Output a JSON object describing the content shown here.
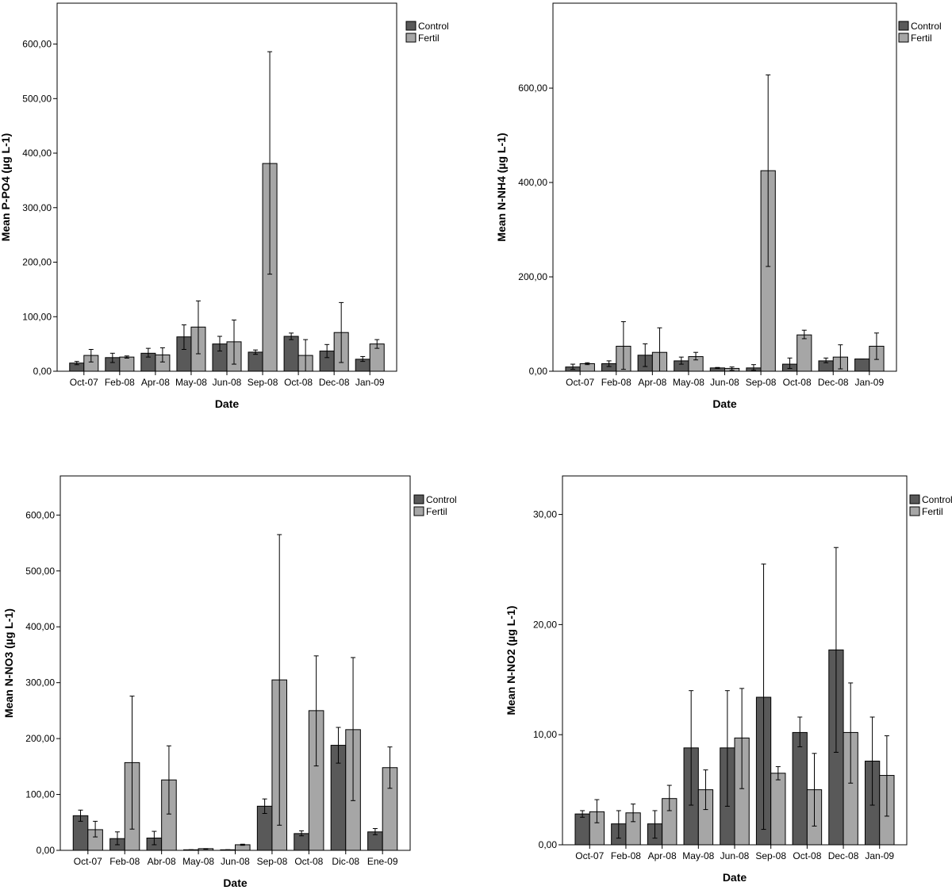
{
  "colors": {
    "control": "#595959",
    "fertil": "#a6a6a6",
    "axis": "#000000"
  },
  "chart_data": [
    {
      "type": "bar",
      "title": "",
      "xlabel": "Date",
      "ylabel": "Mean P-PO4 (µg L-1)",
      "ylim": [
        0,
        675
      ],
      "yticks": [
        0,
        100,
        200,
        300,
        400,
        500,
        600
      ],
      "ytick_labels": [
        "0,00",
        "100,00",
        "200,00",
        "300,00",
        "400,00",
        "500,00",
        "600,00"
      ],
      "categories": [
        "Oct-07",
        "Feb-08",
        "Apr-08",
        "May-08",
        "Jun-08",
        "Sep-08",
        "Oct-08",
        "Dec-08",
        "Jan-09"
      ],
      "legend": [
        "Control",
        "Fertil"
      ],
      "series": [
        {
          "name": "Control",
          "values": [
            15,
            25,
            33,
            63,
            50,
            35,
            64,
            37,
            22
          ],
          "err_low": [
            12,
            16,
            26,
            40,
            37,
            31,
            58,
            25,
            18
          ],
          "err_high": [
            18,
            33,
            42,
            85,
            64,
            39,
            70,
            49,
            27
          ]
        },
        {
          "name": "Fertil",
          "values": [
            29,
            26,
            30,
            81,
            54,
            381,
            29,
            71,
            50
          ],
          "err_low": [
            17,
            24,
            17,
            32,
            13,
            178,
            0,
            16,
            42
          ],
          "err_high": [
            40,
            28,
            43,
            129,
            94,
            586,
            58,
            126,
            58
          ]
        }
      ]
    },
    {
      "type": "bar",
      "title": "",
      "xlabel": "Date",
      "ylabel": "Mean N-NH4 (µg L-1)",
      "ylim": [
        0,
        780
      ],
      "yticks": [
        0,
        200,
        400,
        600
      ],
      "ytick_labels": [
        "0,00",
        "200,00",
        "400,00",
        "600,00"
      ],
      "categories": [
        "Oct-07",
        "Feb-08",
        "Apr-08",
        "May-08",
        "Jun-08",
        "Sep-08",
        "Oct-08",
        "Dec-08",
        "Jan-09"
      ],
      "legend": [
        "Control",
        "Fertil"
      ],
      "series": [
        {
          "name": "Control",
          "values": [
            9,
            16,
            34,
            22,
            7,
            7,
            15,
            22,
            26
          ],
          "err_low": [
            4,
            10,
            10,
            15,
            6,
            2,
            6,
            18,
            26
          ],
          "err_high": [
            15,
            22,
            58,
            30,
            8,
            14,
            28,
            28,
            26
          ]
        },
        {
          "name": "Fertil",
          "values": [
            16,
            53,
            40,
            31,
            6,
            425,
            77,
            30,
            53
          ],
          "err_low": [
            14,
            4,
            0,
            24,
            2,
            222,
            69,
            5,
            25
          ],
          "err_high": [
            18,
            105,
            92,
            40,
            9,
            628,
            87,
            56,
            81
          ]
        }
      ]
    },
    {
      "type": "bar",
      "title": "",
      "xlabel": "Date",
      "ylabel": "Mean N-NO3 (µg L-1)",
      "ylim": [
        0,
        670
      ],
      "yticks": [
        0,
        100,
        200,
        300,
        400,
        500,
        600
      ],
      "ytick_labels": [
        "0,00",
        "100,00",
        "200,00",
        "300,00",
        "400,00",
        "500,00",
        "600,00"
      ],
      "categories": [
        "Oct-07",
        "Feb-08",
        "Abr-08",
        "May-08",
        "Jun-08",
        "Sep-08",
        "Oct-08",
        "Dic-08",
        "Ene-09"
      ],
      "legend": [
        "Control",
        "Fertil"
      ],
      "series": [
        {
          "name": "Control",
          "values": [
            62,
            21,
            22,
            1,
            1,
            79,
            30,
            188,
            33
          ],
          "err_low": [
            52,
            10,
            10,
            1,
            1,
            66,
            26,
            156,
            28
          ],
          "err_high": [
            72,
            33,
            34,
            1,
            1,
            92,
            35,
            220,
            39
          ]
        },
        {
          "name": "Fertil",
          "values": [
            37,
            157,
            126,
            3,
            10,
            305,
            250,
            216,
            148
          ],
          "err_low": [
            24,
            38,
            65,
            2,
            9,
            45,
            151,
            89,
            111
          ],
          "err_high": [
            52,
            276,
            187,
            3,
            11,
            565,
            348,
            345,
            185
          ]
        }
      ]
    },
    {
      "type": "bar",
      "title": "",
      "xlabel": "Date",
      "ylabel": "Mean N-NO2 (µg L-1)",
      "ylim": [
        0,
        33.5
      ],
      "yticks": [
        0,
        10,
        20,
        30
      ],
      "ytick_labels": [
        "0,00",
        "10,00",
        "20,00",
        "30,00"
      ],
      "categories": [
        "Oct-07",
        "Feb-08",
        "Apr-08",
        "May-08",
        "Jun-08",
        "Sep-08",
        "Oct-08",
        "Dec-08",
        "Jan-09"
      ],
      "legend": [
        "Control",
        "Fertil"
      ],
      "series": [
        {
          "name": "Control",
          "values": [
            2.8,
            1.9,
            1.9,
            8.8,
            8.8,
            13.4,
            10.2,
            17.7,
            7.6
          ],
          "err_low": [
            2.5,
            0.6,
            0.6,
            3.6,
            3.5,
            1.4,
            8.9,
            8.4,
            3.6
          ],
          "err_high": [
            3.1,
            3.1,
            3.1,
            14.0,
            14.0,
            25.5,
            11.6,
            27.0,
            11.6
          ]
        },
        {
          "name": "Fertil",
          "values": [
            3.0,
            2.9,
            4.2,
            5.0,
            9.7,
            6.5,
            5.0,
            10.2,
            6.3
          ],
          "err_low": [
            2.0,
            2.1,
            3.1,
            3.2,
            5.1,
            5.9,
            1.7,
            5.6,
            2.6
          ],
          "err_high": [
            4.1,
            3.7,
            5.4,
            6.8,
            14.2,
            7.1,
            8.3,
            14.7,
            9.9
          ]
        }
      ]
    }
  ]
}
